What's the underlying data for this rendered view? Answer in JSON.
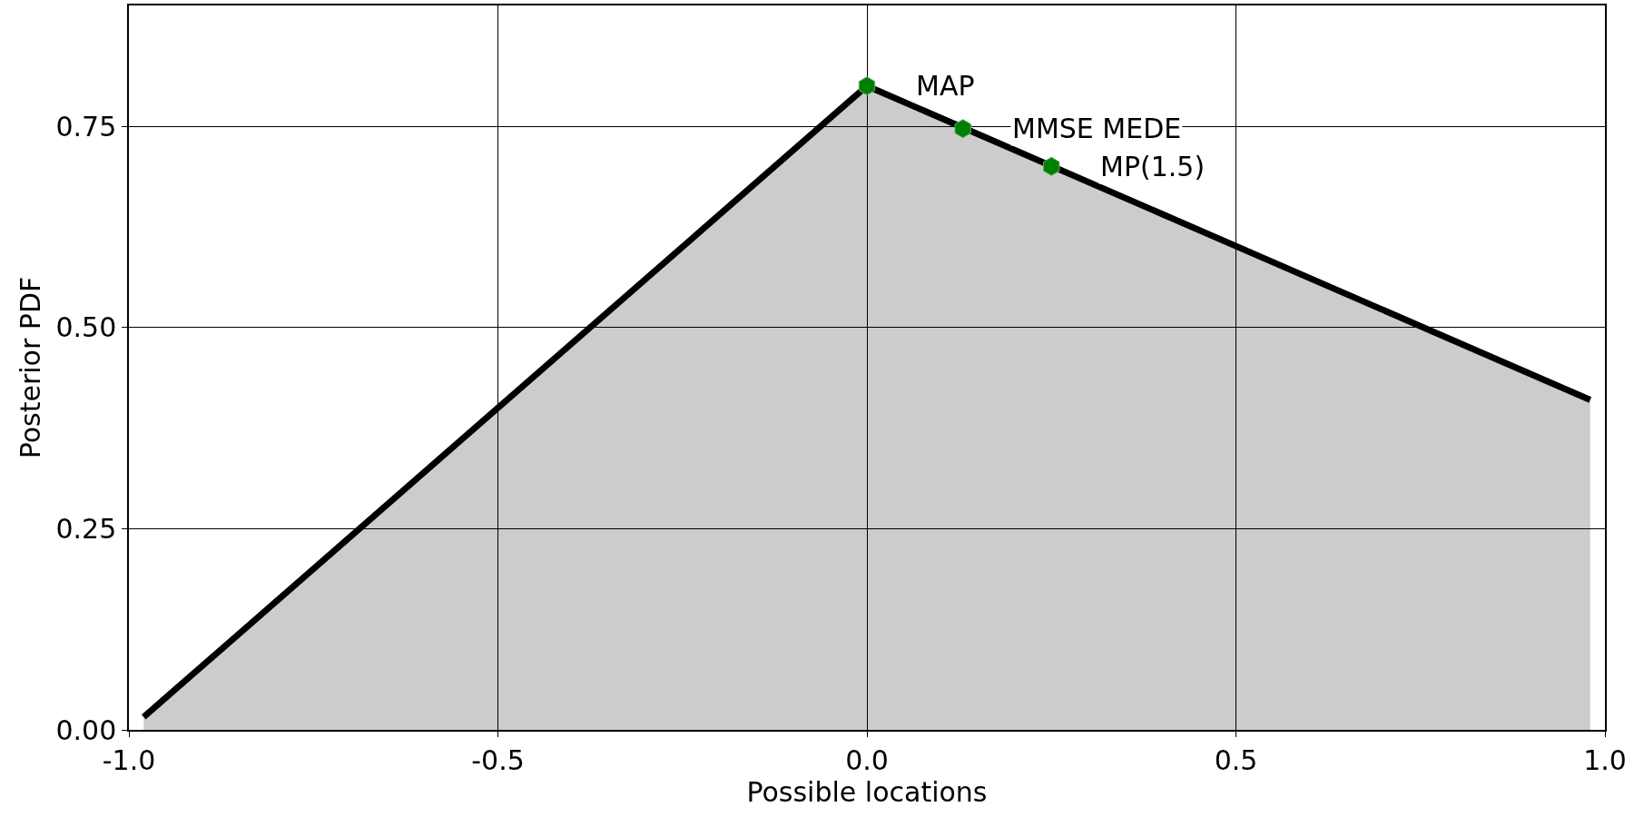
{
  "chart_data": {
    "type": "area",
    "xlabel": "Possible locations",
    "ylabel": "Posterior PDF",
    "xlim": [
      -1,
      1
    ],
    "ylim": [
      0,
      0.9
    ],
    "xticks": [
      {
        "value": -1,
        "label": "-1.0"
      },
      {
        "value": -0.5,
        "label": "-0.5"
      },
      {
        "value": 0,
        "label": "0.0"
      },
      {
        "value": 0.5,
        "label": "0.5"
      },
      {
        "value": 1,
        "label": "1.0"
      }
    ],
    "yticks": [
      {
        "value": 0,
        "label": "0.00"
      },
      {
        "value": 0.25,
        "label": "0.25"
      },
      {
        "value": 0.5,
        "label": "0.50"
      },
      {
        "value": 0.75,
        "label": "0.75"
      }
    ],
    "grid": true,
    "series": [
      {
        "color": "#000000",
        "x": [
          -0.98,
          0,
          0.98
        ],
        "values": [
          0.016,
          0.8,
          0.41
        ]
      },
      {
        "type": "scatter",
        "color": "#008000",
        "x": [
          0,
          0.13,
          0.25
        ],
        "values": [
          0.8,
          0.747,
          0.7
        ]
      }
    ],
    "annotations": [
      {
        "text": "MAP",
        "x": 0,
        "y": 0.8
      },
      {
        "text": "MMSE MEDE",
        "x": 0.13,
        "y": 0.747
      },
      {
        "text": "MP(1.5)",
        "x": 0.25,
        "y": 0.7
      }
    ]
  }
}
